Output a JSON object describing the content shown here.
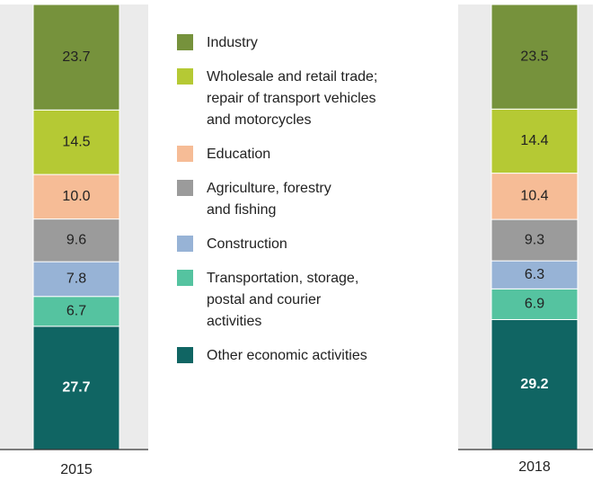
{
  "chart_data": {
    "type": "stacked_bar",
    "categories": [
      "2015",
      "2018"
    ],
    "ylim": [
      0,
      100
    ],
    "series": [
      {
        "name": "Industry",
        "color": "#76923c",
        "values": [
          23.7,
          23.5
        ]
      },
      {
        "name": "Wholesale and retail trade;\nrepair of transport vehicles\nand motorcycles",
        "color": "#b5c934",
        "values": [
          14.5,
          14.4
        ]
      },
      {
        "name": "Education",
        "color": "#f6bc96",
        "values": [
          10,
          10.4
        ],
        "value_labels": [
          "10.0",
          "10.4"
        ]
      },
      {
        "name": "Agriculture, forestry\nand fishing",
        "color": "#9b9b9b",
        "values": [
          9.6,
          9.3
        ]
      },
      {
        "name": "Construction",
        "color": "#97b3d6",
        "values": [
          7.8,
          6.3
        ]
      },
      {
        "name": "Transportation, storage,\npostal and courier\nactivities",
        "color": "#55c3a0",
        "values": [
          6.7,
          6.9
        ]
      },
      {
        "name": "Other economic activities",
        "color": "#106563",
        "values": [
          27.7,
          29.2
        ]
      }
    ]
  }
}
